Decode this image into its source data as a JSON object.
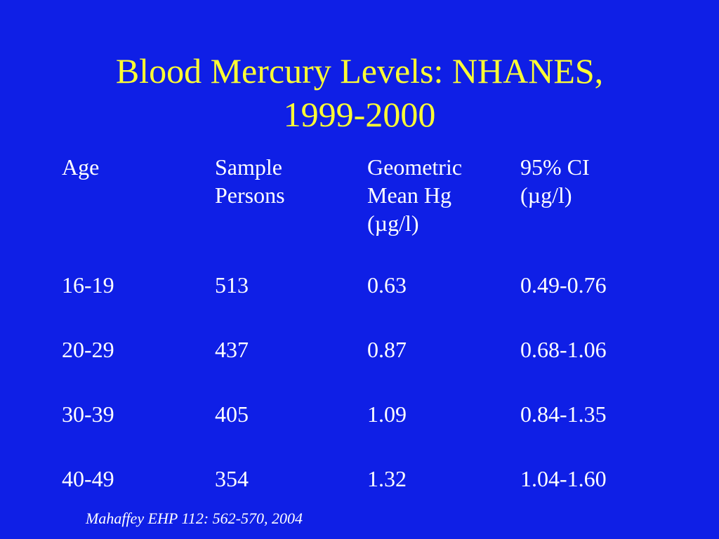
{
  "title": {
    "line1": "Blood Mercury Levels: NHANES,",
    "line2": "1999-2000"
  },
  "table": {
    "headers": [
      {
        "lines": [
          "Age"
        ]
      },
      {
        "lines": [
          "Sample",
          "Persons"
        ]
      },
      {
        "lines": [
          "Geometric",
          "Mean Hg",
          "(µg/l)"
        ]
      },
      {
        "lines": [
          "95% CI",
          "(µg/l)"
        ]
      }
    ],
    "rows": [
      [
        "16-19",
        "513",
        "0.63",
        "0.49-0.76"
      ],
      [
        "20-29",
        "437",
        "0.87",
        "0.68-1.06"
      ],
      [
        "30-39",
        "405",
        "1.09",
        "0.84-1.35"
      ],
      [
        "40-49",
        "354",
        "1.32",
        "1.04-1.60"
      ]
    ]
  },
  "citation": "Mahaffey EHP 112: 562-570, 2004",
  "colors": {
    "background": "#0f1fe6",
    "title": "#ffff33",
    "text": "#ffffff"
  }
}
